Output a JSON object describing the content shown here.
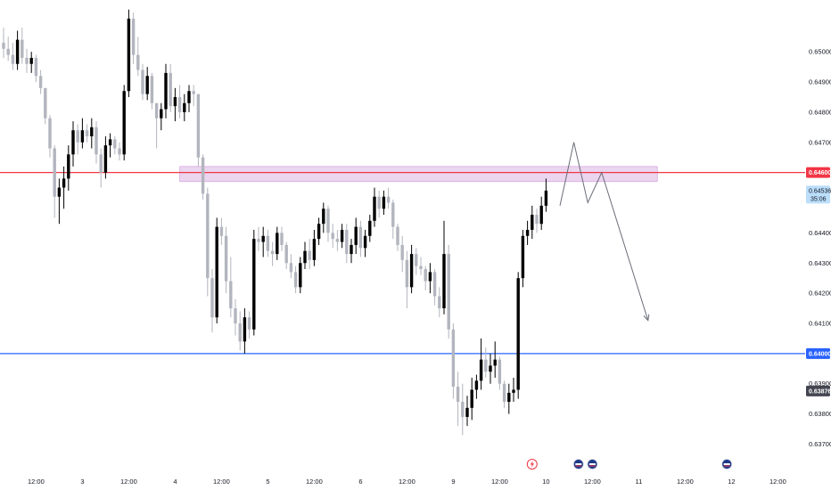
{
  "chart_data": {
    "type": "candlestick",
    "title": "",
    "ylim": [
      0.6366,
      0.6516
    ],
    "y_ticks": [
      {
        "value": 0.65,
        "label": "0.65000"
      },
      {
        "value": 0.649,
        "label": "0.64900"
      },
      {
        "value": 0.648,
        "label": "0.64800"
      },
      {
        "value": 0.647,
        "label": "0.64700"
      },
      {
        "value": 0.644,
        "label": "0.64400"
      },
      {
        "value": 0.643,
        "label": "0.64300"
      },
      {
        "value": 0.642,
        "label": "0.64200"
      },
      {
        "value": 0.641,
        "label": "0.64100"
      },
      {
        "value": 0.639,
        "label": "0.63900"
      },
      {
        "value": 0.638,
        "label": "0.63800"
      },
      {
        "value": 0.637,
        "label": "0.63700"
      }
    ],
    "x_ticks": [
      {
        "index": 7,
        "label": "12:00"
      },
      {
        "index": 17,
        "label": "3"
      },
      {
        "index": 27,
        "label": "12:00"
      },
      {
        "index": 37,
        "label": "4"
      },
      {
        "index": 47,
        "label": "12:00"
      },
      {
        "index": 57,
        "label": "5"
      },
      {
        "index": 67,
        "label": "12:00"
      },
      {
        "index": 77,
        "label": "6"
      },
      {
        "index": 87,
        "label": "12:00"
      },
      {
        "index": 97,
        "label": "9"
      },
      {
        "index": 107,
        "label": "12:00"
      },
      {
        "index": 117,
        "label": "10"
      },
      {
        "index": 127,
        "label": "12:00"
      },
      {
        "index": 137,
        "label": "11"
      },
      {
        "index": 147,
        "label": "12:00"
      },
      {
        "index": 157,
        "label": "12"
      },
      {
        "index": 167,
        "label": "12:00"
      }
    ],
    "candles": [
      [
        0.6503,
        0.6508,
        0.6498,
        0.6501
      ],
      [
        0.6501,
        0.6505,
        0.6497,
        0.6499
      ],
      [
        0.6499,
        0.6503,
        0.6494,
        0.6496
      ],
      [
        0.6496,
        0.6507,
        0.6494,
        0.6504
      ],
      [
        0.6504,
        0.6508,
        0.6496,
        0.6498
      ],
      [
        0.6498,
        0.6501,
        0.6493,
        0.6496
      ],
      [
        0.6496,
        0.65,
        0.6493,
        0.6498
      ],
      [
        0.6498,
        0.6499,
        0.649,
        0.6492
      ],
      [
        0.6492,
        0.6494,
        0.6486,
        0.6488
      ],
      [
        0.6488,
        0.6488,
        0.6476,
        0.6478
      ],
      [
        0.6478,
        0.6479,
        0.6465,
        0.6468
      ],
      [
        0.6468,
        0.6469,
        0.6445,
        0.6452
      ],
      [
        0.6452,
        0.6458,
        0.6443,
        0.6455
      ],
      [
        0.6455,
        0.6462,
        0.6448,
        0.6458
      ],
      [
        0.6458,
        0.6469,
        0.6454,
        0.6466
      ],
      [
        0.6466,
        0.6477,
        0.6462,
        0.6474
      ],
      [
        0.6474,
        0.6476,
        0.6466,
        0.647
      ],
      [
        0.647,
        0.6478,
        0.6468,
        0.6474
      ],
      [
        0.6474,
        0.6476,
        0.647,
        0.6472
      ],
      [
        0.6472,
        0.6478,
        0.6468,
        0.6475
      ],
      [
        0.6475,
        0.6477,
        0.6463,
        0.6466
      ],
      [
        0.6466,
        0.6468,
        0.6455,
        0.646
      ],
      [
        0.646,
        0.6472,
        0.6458,
        0.6469
      ],
      [
        0.6469,
        0.6473,
        0.6465,
        0.6471
      ],
      [
        0.6471,
        0.6472,
        0.6466,
        0.6468
      ],
      [
        0.6468,
        0.647,
        0.6464,
        0.6466
      ],
      [
        0.6466,
        0.6489,
        0.6464,
        0.6487
      ],
      [
        0.6487,
        0.6514,
        0.6485,
        0.6511
      ],
      [
        0.6511,
        0.6513,
        0.6496,
        0.6499
      ],
      [
        0.6499,
        0.6505,
        0.6492,
        0.6494
      ],
      [
        0.6494,
        0.6496,
        0.6484,
        0.6486
      ],
      [
        0.6486,
        0.6495,
        0.6484,
        0.6492
      ],
      [
        0.6492,
        0.6493,
        0.6481,
        0.6483
      ],
      [
        0.6483,
        0.6483,
        0.6468,
        0.6478
      ],
      [
        0.6478,
        0.6483,
        0.6474,
        0.6481
      ],
      [
        0.6481,
        0.6496,
        0.6478,
        0.6493
      ],
      [
        0.6493,
        0.6496,
        0.648,
        0.6482
      ],
      [
        0.6482,
        0.6488,
        0.6477,
        0.6485
      ],
      [
        0.6485,
        0.6489,
        0.6478,
        0.648
      ],
      [
        0.648,
        0.6486,
        0.6477,
        0.6483
      ],
      [
        0.6483,
        0.6489,
        0.648,
        0.6487
      ],
      [
        0.6487,
        0.6489,
        0.6482,
        0.6486
      ],
      [
        0.6486,
        0.6486,
        0.6462,
        0.6465
      ],
      [
        0.6465,
        0.6466,
        0.6451,
        0.6453
      ],
      [
        0.6453,
        0.6455,
        0.6419,
        0.6425
      ],
      [
        0.6425,
        0.6428,
        0.6407,
        0.6412
      ],
      [
        0.6412,
        0.6445,
        0.641,
        0.6442
      ],
      [
        0.6442,
        0.6445,
        0.6436,
        0.6439
      ],
      [
        0.6439,
        0.6442,
        0.642,
        0.6424
      ],
      [
        0.6424,
        0.6432,
        0.6412,
        0.6415
      ],
      [
        0.6415,
        0.6418,
        0.6406,
        0.641
      ],
      [
        0.641,
        0.6414,
        0.6401,
        0.6404
      ],
      [
        0.6404,
        0.6415,
        0.64,
        0.6412
      ],
      [
        0.6412,
        0.6414,
        0.6405,
        0.6408
      ],
      [
        0.6408,
        0.6441,
        0.6406,
        0.6438
      ],
      [
        0.6438,
        0.6442,
        0.6434,
        0.6437
      ],
      [
        0.6437,
        0.6442,
        0.6432,
        0.6439
      ],
      [
        0.6439,
        0.6441,
        0.6432,
        0.6434
      ],
      [
        0.6434,
        0.6437,
        0.6429,
        0.6433
      ],
      [
        0.6433,
        0.6442,
        0.6431,
        0.644
      ],
      [
        0.644,
        0.6442,
        0.6434,
        0.6436
      ],
      [
        0.6436,
        0.6437,
        0.6428,
        0.643
      ],
      [
        0.643,
        0.6433,
        0.6425,
        0.6427
      ],
      [
        0.6427,
        0.6429,
        0.642,
        0.6422
      ],
      [
        0.6422,
        0.6432,
        0.642,
        0.643
      ],
      [
        0.643,
        0.6437,
        0.6428,
        0.6434
      ],
      [
        0.6434,
        0.6438,
        0.6428,
        0.6431
      ],
      [
        0.6431,
        0.6441,
        0.6429,
        0.6438
      ],
      [
        0.6438,
        0.6445,
        0.6436,
        0.6443
      ],
      [
        0.6443,
        0.645,
        0.644,
        0.6448
      ],
      [
        0.6448,
        0.6449,
        0.6437,
        0.644
      ],
      [
        0.644,
        0.6443,
        0.6435,
        0.6438
      ],
      [
        0.6438,
        0.6441,
        0.6434,
        0.6437
      ],
      [
        0.6437,
        0.6443,
        0.6435,
        0.6441
      ],
      [
        0.6441,
        0.6443,
        0.643,
        0.6433
      ],
      [
        0.6433,
        0.6438,
        0.643,
        0.6436
      ],
      [
        0.6436,
        0.6445,
        0.6433,
        0.6442
      ],
      [
        0.6442,
        0.6444,
        0.6432,
        0.6435
      ],
      [
        0.6435,
        0.6441,
        0.6432,
        0.6439
      ],
      [
        0.6439,
        0.6446,
        0.6437,
        0.6444
      ],
      [
        0.6444,
        0.6455,
        0.6442,
        0.6452
      ],
      [
        0.6452,
        0.6454,
        0.6445,
        0.6448
      ],
      [
        0.6448,
        0.6454,
        0.6446,
        0.6452
      ],
      [
        0.6452,
        0.6455,
        0.6448,
        0.645
      ],
      [
        0.645,
        0.6451,
        0.6438,
        0.6442
      ],
      [
        0.6442,
        0.6443,
        0.6434,
        0.6436
      ],
      [
        0.6436,
        0.6439,
        0.6427,
        0.6431
      ],
      [
        0.6431,
        0.6434,
        0.6415,
        0.6422
      ],
      [
        0.6422,
        0.6436,
        0.642,
        0.6433
      ],
      [
        0.6433,
        0.6435,
        0.6426,
        0.6429
      ],
      [
        0.6429,
        0.6432,
        0.6426,
        0.6428
      ],
      [
        0.6428,
        0.6429,
        0.6421,
        0.6424
      ],
      [
        0.6424,
        0.643,
        0.642,
        0.6427
      ],
      [
        0.6427,
        0.6428,
        0.6416,
        0.6419
      ],
      [
        0.6419,
        0.6422,
        0.6412,
        0.6415
      ],
      [
        0.6415,
        0.6444,
        0.6413,
        0.6433
      ],
      [
        0.6433,
        0.6436,
        0.6405,
        0.6408
      ],
      [
        0.6408,
        0.641,
        0.6385,
        0.6389
      ],
      [
        0.6389,
        0.6394,
        0.6376,
        0.6384
      ],
      [
        0.6384,
        0.639,
        0.6373,
        0.6379
      ],
      [
        0.6379,
        0.6386,
        0.6376,
        0.6382
      ],
      [
        0.6382,
        0.6392,
        0.6378,
        0.6388
      ],
      [
        0.6388,
        0.6393,
        0.6385,
        0.6391
      ],
      [
        0.6391,
        0.6405,
        0.6388,
        0.6398
      ],
      [
        0.6398,
        0.6402,
        0.6392,
        0.6394
      ],
      [
        0.6394,
        0.64,
        0.639,
        0.6396
      ],
      [
        0.6396,
        0.6404,
        0.6392,
        0.6398
      ],
      [
        0.6398,
        0.6399,
        0.6388,
        0.639
      ],
      [
        0.639,
        0.6391,
        0.6382,
        0.6384
      ],
      [
        0.6384,
        0.639,
        0.638,
        0.6387
      ],
      [
        0.6387,
        0.6392,
        0.6384,
        0.6388
      ],
      [
        0.6388,
        0.6427,
        0.6385,
        0.6425
      ],
      [
        0.6425,
        0.6441,
        0.6422,
        0.6439
      ],
      [
        0.6439,
        0.6444,
        0.6436,
        0.6441
      ],
      [
        0.6441,
        0.6449,
        0.6438,
        0.6446
      ],
      [
        0.6446,
        0.6448,
        0.644,
        0.6443
      ],
      [
        0.6443,
        0.6452,
        0.6441,
        0.6449
      ],
      [
        0.6449,
        0.6458,
        0.6447,
        0.6454
      ]
    ],
    "zone": {
      "low": 0.6457,
      "high": 0.6462,
      "from_index": 38,
      "to_index": 141
    },
    "hlines": [
      {
        "value": 0.646,
        "color": "#f23645",
        "label": "0.64600"
      },
      {
        "value": 0.64,
        "color": "#2962ff",
        "label": "0.64000"
      }
    ],
    "projection": [
      [
        120,
        0.6449
      ],
      [
        123,
        0.647
      ],
      [
        126,
        0.645
      ],
      [
        129,
        0.646
      ],
      [
        139,
        0.6411
      ]
    ],
    "last_price": {
      "value": 0.64536,
      "label": "0.64536",
      "countdown": "35:06",
      "color": "#2962ff"
    },
    "marker_price": {
      "value": 0.63876,
      "label": "0.63876"
    },
    "event_markers": [
      {
        "index": 114,
        "icon": "lightning-icon"
      },
      {
        "index": 124,
        "icon": "flag-icon"
      },
      {
        "index": 127,
        "icon": "flag-icon"
      },
      {
        "index": 156,
        "icon": "flag-icon"
      },
      {
        "index": 177,
        "icon": "flag-icon"
      }
    ],
    "colors": {
      "up": "#000000",
      "down": "#b2b5be",
      "zone": "#e1bee7"
    },
    "grid": false
  }
}
